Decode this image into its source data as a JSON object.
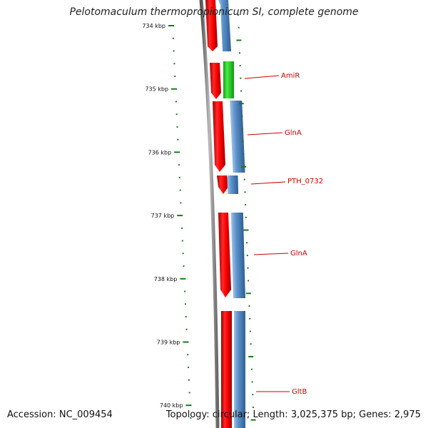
{
  "title": "Pelotomaculum thermopropionicum SI, complete genome",
  "footer": {
    "accession_label": "Accession:",
    "accession": "NC_009454",
    "topology_label": "Topology:",
    "topology": "circular",
    "length_label": "Length:",
    "length": "3,025,375 bp",
    "genes_label": "Genes:",
    "genes": "2,975"
  },
  "colors": {
    "forward_strand": "#ff0000",
    "reverse_strand": "#4a84c0",
    "highlight_gene": "#22cc22",
    "label": "#cc0000",
    "tick": "#1a7a1a",
    "backbone": "#888888"
  },
  "ruler": {
    "ticks": [
      {
        "label": "734 kbp",
        "kbp": 734
      },
      {
        "label": "735 kbp",
        "kbp": 735
      },
      {
        "label": "736 kbp",
        "kbp": 736
      },
      {
        "label": "737 kbp",
        "kbp": 737
      },
      {
        "label": "738 kbp",
        "kbp": 738
      },
      {
        "label": "739 kbp",
        "kbp": 739
      },
      {
        "label": "740 kbp",
        "kbp": 740
      }
    ]
  },
  "gene_labels": [
    {
      "name": "AmiR"
    },
    {
      "name": "GlnA"
    },
    {
      "name": "PTH_0732"
    },
    {
      "name": "GlnA"
    },
    {
      "name": "GltB"
    }
  ]
}
